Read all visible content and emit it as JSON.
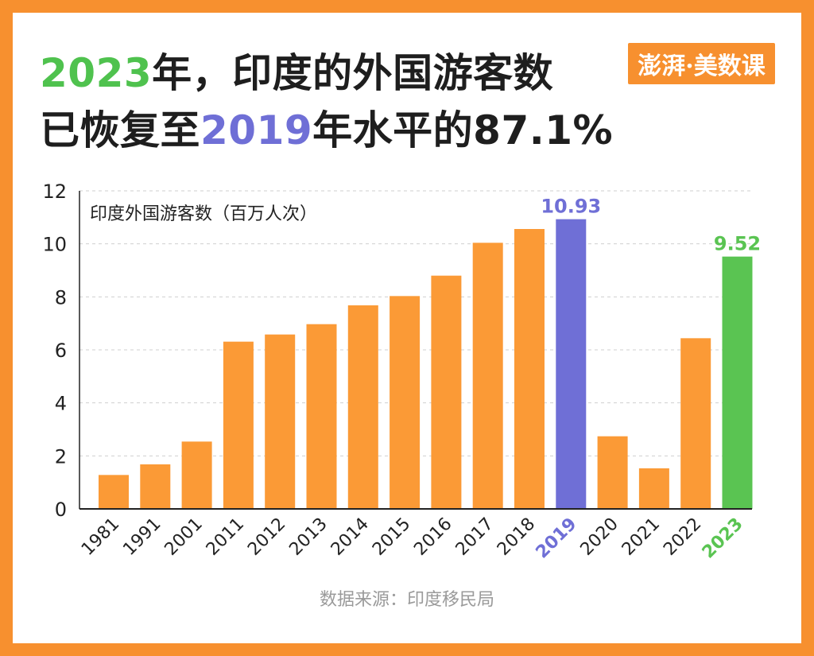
{
  "title": {
    "line1_highlight": "2023",
    "line1_rest": "年，印度的外国游客数",
    "line2_pre": "已恢复至",
    "line2_highlight": "2019",
    "line2_rest": "年水平的87.1%"
  },
  "logo_text": "澎湃·美数课",
  "source": "数据来源：印度移民局",
  "colors": {
    "frame": "#f7902f",
    "bar": "#fb9a36",
    "highlight_2019": "#6f6fd6",
    "highlight_2023": "#5ac452"
  },
  "chart_data": {
    "type": "bar",
    "series_label": "印度外国游客数（百万人次）",
    "categories": [
      "1981",
      "1991",
      "2001",
      "2011",
      "2012",
      "2013",
      "2014",
      "2015",
      "2016",
      "2017",
      "2018",
      "2019",
      "2020",
      "2021",
      "2022",
      "2023"
    ],
    "values": [
      1.28,
      1.68,
      2.54,
      6.31,
      6.58,
      6.97,
      7.68,
      8.03,
      8.8,
      10.04,
      10.56,
      10.93,
      2.74,
      1.53,
      6.44,
      9.52
    ],
    "highlight": {
      "2019": "purple",
      "2023": "green"
    },
    "data_labels": {
      "2019": "10.93",
      "2023": "9.52"
    },
    "ylim": [
      0,
      12
    ],
    "yticks": [
      0,
      2,
      4,
      6,
      8,
      10,
      12
    ],
    "grid": true
  }
}
